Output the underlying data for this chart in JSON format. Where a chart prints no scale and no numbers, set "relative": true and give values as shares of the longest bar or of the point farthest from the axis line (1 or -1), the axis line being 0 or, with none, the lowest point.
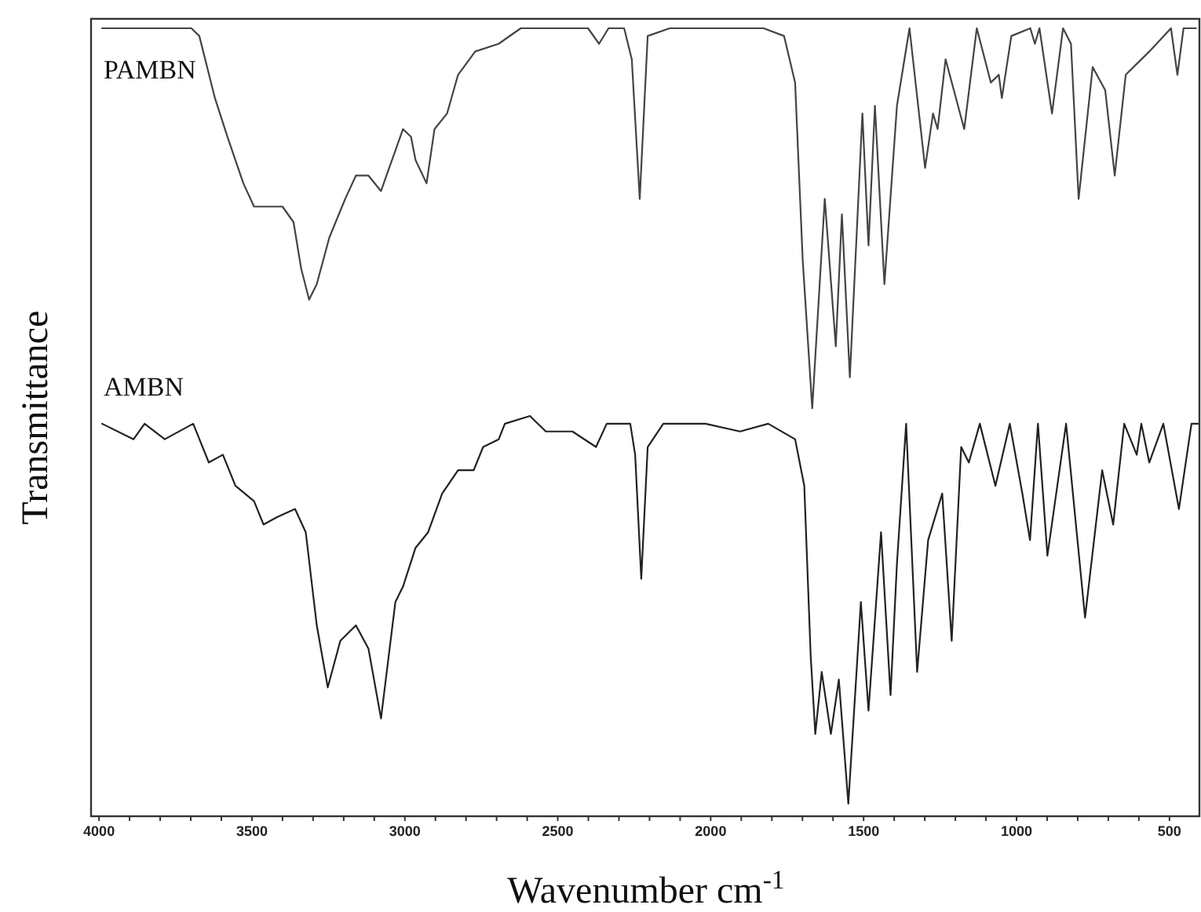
{
  "chart_data": {
    "type": "line",
    "relative": true,
    "xlabel": "Wavenumber cm$^{-1}$",
    "ylabel": "Transmittance",
    "xlim": [
      4026,
      402
    ],
    "xticks": [
      4000,
      {
        "value": 3900,
        "label": null
      },
      {
        "value": 3800,
        "label": null
      },
      {
        "value": 3700,
        "label": null
      },
      {
        "value": 3600,
        "label": null
      },
      3500,
      {
        "value": 3400,
        "label": null
      },
      {
        "value": 3300,
        "label": null
      },
      {
        "value": 3200,
        "label": null
      },
      {
        "value": 3100,
        "label": null
      },
      3000,
      {
        "value": 2900,
        "label": null
      },
      {
        "value": 2800,
        "label": null
      },
      {
        "value": 2700,
        "label": null
      },
      {
        "value": 2600,
        "label": null
      },
      2500,
      {
        "value": 2400,
        "label": null
      },
      {
        "value": 2300,
        "label": null
      },
      {
        "value": 2200,
        "label": null
      },
      {
        "value": 2100,
        "label": null
      },
      2000,
      {
        "value": 1900,
        "label": null
      },
      {
        "value": 1800,
        "label": null
      },
      {
        "value": 1700,
        "label": null
      },
      {
        "value": 1600,
        "label": null
      },
      1500,
      {
        "value": 1400,
        "label": null
      },
      {
        "value": 1300,
        "label": null
      },
      {
        "value": 1200,
        "label": null
      },
      {
        "value": 1100,
        "label": null
      },
      1000,
      {
        "value": 900,
        "label": null
      },
      {
        "value": 800,
        "label": null
      },
      {
        "value": 700,
        "label": null
      },
      {
        "value": 600,
        "label": null
      },
      500
    ],
    "grid": false,
    "legend": false,
    "marker": "none",
    "line_style": "solid",
    "series": [
      {
        "name": "PAMBN",
        "color": "#444444",
        "x": [
          3990,
          3698,
          3672,
          3621,
          3580,
          3528,
          3493,
          3400,
          3364,
          3339,
          3313,
          3288,
          3247,
          3195,
          3160,
          3119,
          3078,
          3042,
          3006,
          2980,
          2965,
          2929,
          2903,
          2862,
          2826,
          2770,
          2693,
          2621,
          2401,
          2365,
          2334,
          2283,
          2258,
          2232,
          2211,
          2206,
          2134,
          1827,
          1760,
          1724,
          1699,
          1668,
          1627,
          1591,
          1571,
          1545,
          1504,
          1484,
          1463,
          1432,
          1391,
          1350,
          1299,
          1273,
          1258,
          1232,
          1171,
          1130,
          1084,
          1058,
          1048,
          1017,
          955,
          940,
          925,
          884,
          848,
          822,
          797,
          751,
          710,
          679,
          643,
          566,
          495,
          474,
          454,
          413
        ],
        "values": [
          1.0,
          1.0,
          0.99,
          0.91,
          0.86,
          0.8,
          0.77,
          0.77,
          0.75,
          0.69,
          0.65,
          0.67,
          0.73,
          0.78,
          0.81,
          0.81,
          0.79,
          0.83,
          0.87,
          0.86,
          0.83,
          0.8,
          0.87,
          0.89,
          0.94,
          0.97,
          0.98,
          1.0,
          1.0,
          0.98,
          1.0,
          1.0,
          0.96,
          0.78,
          0.95,
          0.99,
          1.0,
          1.0,
          0.99,
          0.93,
          0.7,
          0.51,
          0.78,
          0.59,
          0.76,
          0.55,
          0.89,
          0.72,
          0.9,
          0.67,
          0.9,
          1.0,
          0.82,
          0.89,
          0.87,
          0.96,
          0.87,
          1.0,
          0.93,
          0.94,
          0.91,
          0.99,
          1.0,
          0.98,
          1.0,
          0.89,
          1.0,
          0.98,
          0.78,
          0.95,
          0.92,
          0.81,
          0.94,
          0.97,
          1.0,
          0.94,
          1.0,
          1.0
        ]
      },
      {
        "name": "AMBN",
        "color": "#222222",
        "x": [
          3990,
          3887,
          3851,
          3785,
          3692,
          3641,
          3595,
          3554,
          3493,
          3462,
          3416,
          3359,
          3324,
          3288,
          3252,
          3211,
          3160,
          3119,
          3078,
          3031,
          3006,
          2965,
          2924,
          2878,
          2826,
          2775,
          2744,
          2693,
          2673,
          2591,
          2539,
          2452,
          2375,
          2340,
          2263,
          2247,
          2227,
          2206,
          2155,
          2017,
          1904,
          1812,
          1724,
          1694,
          1673,
          1658,
          1637,
          1607,
          1581,
          1550,
          1520,
          1509,
          1484,
          1443,
          1412,
          1391,
          1361,
          1325,
          1289,
          1243,
          1212,
          1181,
          1156,
          1120,
          1069,
          1022,
          981,
          956,
          930,
          899,
          838,
          776,
          720,
          684,
          648,
          607,
          592,
          566,
          520,
          469,
          428,
          407
        ],
        "values": [
          0.49,
          0.47,
          0.49,
          0.47,
          0.49,
          0.44,
          0.45,
          0.41,
          0.39,
          0.36,
          0.37,
          0.38,
          0.35,
          0.23,
          0.15,
          0.21,
          0.23,
          0.2,
          0.11,
          0.26,
          0.28,
          0.33,
          0.35,
          0.4,
          0.43,
          0.43,
          0.46,
          0.47,
          0.49,
          0.5,
          0.48,
          0.48,
          0.46,
          0.49,
          0.49,
          0.45,
          0.29,
          0.46,
          0.49,
          0.49,
          0.48,
          0.49,
          0.47,
          0.41,
          0.19,
          0.09,
          0.17,
          0.09,
          0.16,
          0.0,
          0.19,
          0.26,
          0.12,
          0.35,
          0.14,
          0.31,
          0.49,
          0.17,
          0.34,
          0.4,
          0.21,
          0.46,
          0.44,
          0.49,
          0.41,
          0.49,
          0.4,
          0.34,
          0.49,
          0.32,
          0.49,
          0.24,
          0.43,
          0.36,
          0.49,
          0.45,
          0.49,
          0.44,
          0.49,
          0.38,
          0.49,
          0.49
        ]
      }
    ]
  }
}
